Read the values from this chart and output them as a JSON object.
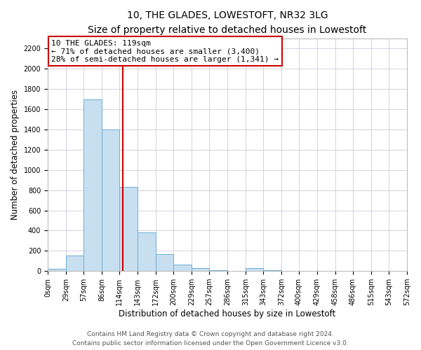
{
  "title": "10, THE GLADES, LOWESTOFT, NR32 3LG",
  "subtitle": "Size of property relative to detached houses in Lowestoft",
  "xlabel": "Distribution of detached houses by size in Lowestoft",
  "ylabel": "Number of detached properties",
  "bar_edges": [
    0,
    29,
    57,
    86,
    114,
    143,
    172,
    200,
    229,
    257,
    286,
    315,
    343,
    372,
    400,
    429,
    458,
    486,
    515,
    543,
    572
  ],
  "bar_labels": [
    "0sqm",
    "29sqm",
    "57sqm",
    "86sqm",
    "114sqm",
    "143sqm",
    "172sqm",
    "200sqm",
    "229sqm",
    "257sqm",
    "286sqm",
    "315sqm",
    "343sqm",
    "372sqm",
    "400sqm",
    "429sqm",
    "458sqm",
    "486sqm",
    "515sqm",
    "543sqm",
    "572sqm"
  ],
  "bar_heights": [
    20,
    155,
    1700,
    1400,
    830,
    380,
    165,
    65,
    30,
    10,
    0,
    30,
    10,
    0,
    0,
    0,
    0,
    0,
    0,
    0
  ],
  "bar_color": "#c8dff0",
  "bar_edgecolor": "#6aaed6",
  "property_line_x": 119,
  "property_line_color": "#cc0000",
  "annotation_line1": "10 THE GLADES: 119sqm",
  "annotation_line2": "← 71% of detached houses are smaller (3,400)",
  "annotation_line3": "28% of semi-detached houses are larger (1,341) →",
  "annotation_box_color": "#ffffff",
  "annotation_box_edgecolor": "#cc0000",
  "ylim": [
    0,
    2300
  ],
  "yticks": [
    0,
    200,
    400,
    600,
    800,
    1000,
    1200,
    1400,
    1600,
    1800,
    2000,
    2200
  ],
  "grid_color": "#ccccdd",
  "background_color": "#ffffff",
  "footer_line1": "Contains HM Land Registry data © Crown copyright and database right 2024.",
  "footer_line2": "Contains public sector information licensed under the Open Government Licence v3.0.",
  "title_fontsize": 10,
  "subtitle_fontsize": 9,
  "label_fontsize": 8.5,
  "tick_fontsize": 7,
  "annotation_fontsize": 8,
  "footer_fontsize": 6.5
}
